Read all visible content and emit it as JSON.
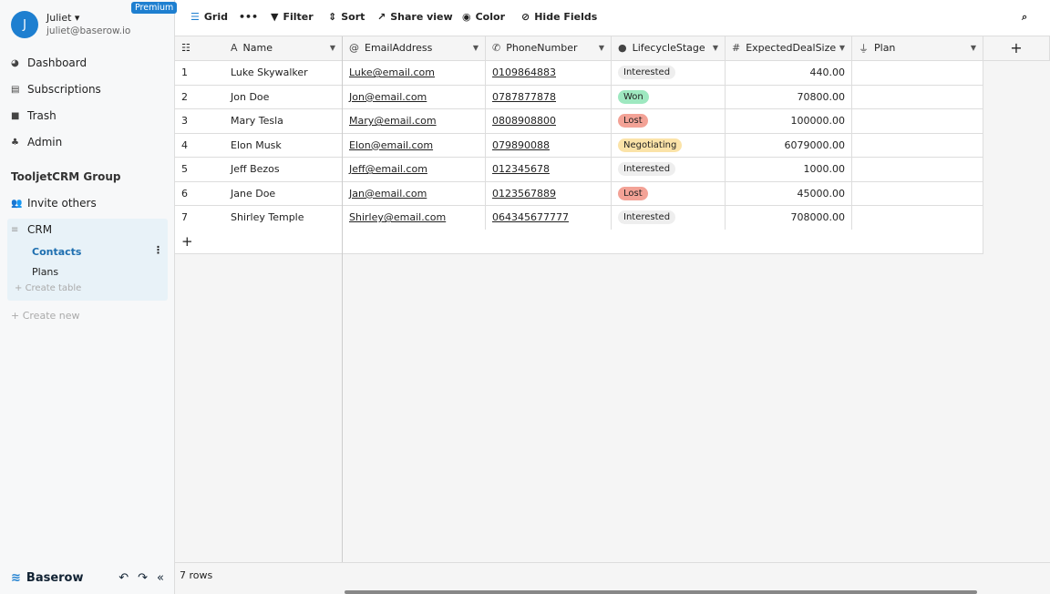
{
  "user": {
    "initial": "J",
    "name": "Juliet",
    "email": "juliet@baserow.io",
    "badge": "Premium"
  },
  "nav": [
    {
      "label": "Dashboard",
      "icon": "dashboard-icon"
    },
    {
      "label": "Subscriptions",
      "icon": "subscriptions-icon"
    },
    {
      "label": "Trash",
      "icon": "trash-icon"
    },
    {
      "label": "Admin",
      "icon": "admin-icon"
    }
  ],
  "group": {
    "name": "TooljetCRM Group",
    "invite": "Invite others",
    "database": "CRM",
    "tables": [
      "Contacts",
      "Plans"
    ],
    "create_table": "Create table",
    "create_new": "Create new"
  },
  "footer": {
    "brand": "Baserow"
  },
  "toolbar": {
    "view": "Grid",
    "filter": "Filter",
    "sort": "Sort",
    "share": "Share view",
    "color": "Color",
    "hide": "Hide Fields"
  },
  "columns": [
    {
      "label": "Name",
      "icon": "text-icon"
    },
    {
      "label": "EmailAddress",
      "icon": "at-icon"
    },
    {
      "label": "PhoneNumber",
      "icon": "phone-icon"
    },
    {
      "label": "LifecycleStage",
      "icon": "single-select-icon"
    },
    {
      "label": "ExpectedDealSize",
      "icon": "hash-icon"
    },
    {
      "label": "Plan",
      "icon": "link-icon"
    }
  ],
  "rows": [
    {
      "id": "1",
      "name": "Luke Skywalker",
      "email": "Luke@email.com",
      "phone": "0109864883",
      "stage": "Interested",
      "deal": "440.00"
    },
    {
      "id": "2",
      "name": "Jon Doe",
      "email": "Jon@email.com",
      "phone": "0787877878",
      "stage": "Won",
      "deal": "70800.00"
    },
    {
      "id": "3",
      "name": "Mary Tesla",
      "email": "Mary@email.com",
      "phone": "0808908800",
      "stage": "Lost",
      "deal": "100000.00"
    },
    {
      "id": "4",
      "name": "Elon Musk",
      "email": "Elon@email.com",
      "phone": "079890088",
      "stage": "Negotiating",
      "deal": "6079000.00"
    },
    {
      "id": "5",
      "name": "Jeff Bezos",
      "email": "Jeff@email.com",
      "phone": "012345678",
      "stage": "Interested",
      "deal": "1000.00"
    },
    {
      "id": "6",
      "name": "Jane Doe",
      "email": "Jan@email.com",
      "phone": "0123567889",
      "stage": "Lost",
      "deal": "45000.00"
    },
    {
      "id": "7",
      "name": "Shirley Temple",
      "email": "Shirley@email.com",
      "phone": "064345677777",
      "stage": "Interested",
      "deal": "708000.00"
    }
  ],
  "stage_colors": {
    "Interested": "#eeeeee",
    "Won": "#9ee8c0",
    "Lost": "#f3a296",
    "Negotiating": "#fbe3a8"
  },
  "row_count": "7 rows"
}
